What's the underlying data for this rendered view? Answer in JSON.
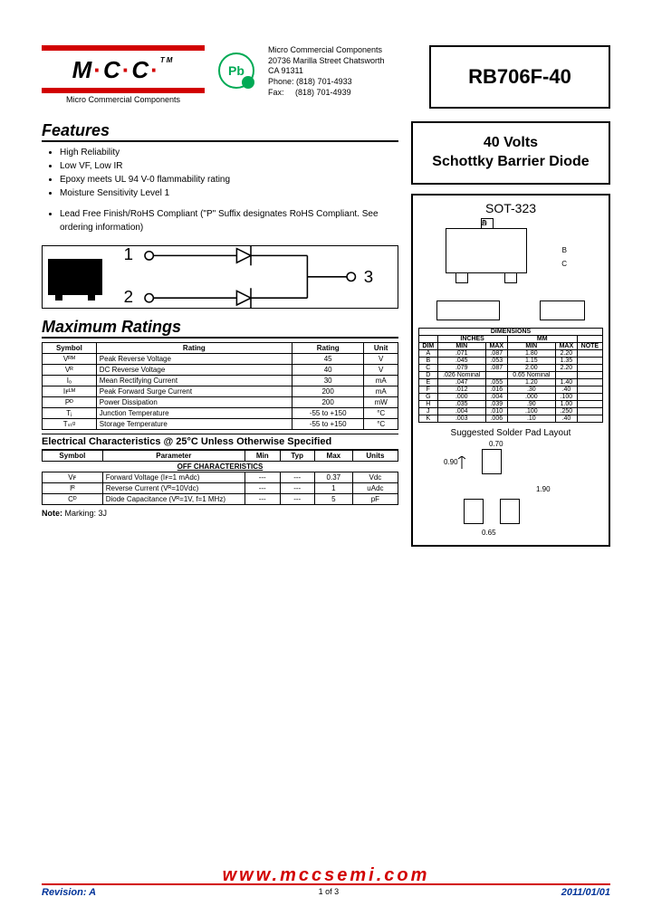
{
  "company": {
    "logo_text": "M·C·C",
    "trademark": "TM",
    "subtitle": "Micro Commercial Components",
    "badge": "Pb",
    "address_lines": [
      "Micro Commercial Components",
      "20736 Marilla Street Chatsworth",
      "CA 91311"
    ],
    "phone_label": "Phone:",
    "phone": "(818) 701-4933",
    "fax_label": "Fax:",
    "fax": "(818) 701-4939"
  },
  "part_number": "RB706F-40",
  "product_title_line1": "40 Volts",
  "product_title_line2": "Schottky Barrier Diode",
  "features": {
    "heading": "Features",
    "items": [
      "High Reliability",
      "Low VF, Low IR",
      "Epoxy meets UL 94 V-0 flammability rating",
      "Moisture Sensitivity Level 1",
      "Lead Free Finish/RoHS Compliant (\"P\" Suffix designates RoHS Compliant. See ordering information)"
    ]
  },
  "pins": {
    "p1": "1",
    "p2": "2",
    "p3": "3"
  },
  "max_ratings": {
    "heading": "Maximum Ratings",
    "columns": [
      "Symbol",
      "Rating",
      "Rating",
      "Unit"
    ],
    "rows": [
      [
        "Vᴿᴹ",
        "Peak Reverse Voltage",
        "45",
        "V"
      ],
      [
        "Vᴿ",
        "DC Reverse Voltage",
        "40",
        "V"
      ],
      [
        "Iₒ",
        "Mean Rectifying Current",
        "30",
        "mA"
      ],
      [
        "Iꜰᴸᴹ",
        "Peak Forward Surge Current",
        "200",
        "mA"
      ],
      [
        "Pᴰ",
        "Power Dissipation",
        "200",
        "mW"
      ],
      [
        "Tⱼ",
        "Junction Temperature",
        "-55 to +150",
        "°C"
      ],
      [
        "Tₛₜᵍ",
        "Storage Temperature",
        "-55 to +150",
        "°C"
      ]
    ]
  },
  "elec_char": {
    "heading": "Electrical Characteristics @ 25°C Unless Otherwise Specified",
    "section": "OFF CHARACTERISTICS",
    "columns": [
      "Symbol",
      "Parameter",
      "Min",
      "Typ",
      "Max",
      "Units"
    ],
    "rows": [
      [
        "Vꜰ",
        "Forward Voltage\n(Iꜰ=1 mAdc)",
        "---",
        "---",
        "0.37",
        "Vdc"
      ],
      [
        "Iᴿ",
        "Reverse Current\n(Vᴿ=10Vdc)",
        "---",
        "---",
        "1",
        "uAdc"
      ],
      [
        "Cᴰ",
        "Diode Capacitance\n(Vᴿ=1V, f=1 MHz)",
        "---",
        "---",
        "5",
        "pF"
      ]
    ],
    "note_label": "Note:",
    "note": "Marking: 3J"
  },
  "package": {
    "name": "SOT-323",
    "dim_heading": "DIMENSIONS",
    "dim_groups": [
      "INCHES",
      "MM"
    ],
    "dim_cols": [
      "DIM",
      "MIN",
      "MAX",
      "MIN",
      "MAX",
      "NOTE"
    ],
    "dim_rows": [
      [
        "A",
        ".071",
        ".087",
        "1.80",
        "2.20",
        ""
      ],
      [
        "B",
        ".045",
        ".053",
        "1.15",
        "1.35",
        ""
      ],
      [
        "C",
        ".079",
        ".087",
        "2.00",
        "2.20",
        ""
      ],
      [
        "D",
        ".026 Nominal",
        "",
        "0.65 Nominal",
        "",
        ""
      ],
      [
        "E",
        ".047",
        ".055",
        "1.20",
        "1.40",
        ""
      ],
      [
        "F",
        ".012",
        ".016",
        ".30",
        ".40",
        ""
      ],
      [
        "G",
        ".000",
        ".004",
        ".000",
        ".100",
        ""
      ],
      [
        "H",
        ".035",
        ".039",
        ".90",
        "1.00",
        ""
      ],
      [
        "J",
        ".004",
        ".010",
        ".100",
        ".250",
        ""
      ],
      [
        "K",
        ".003",
        ".006",
        ".10",
        ".40",
        ""
      ]
    ],
    "solder_title": "Suggested Solder Pad Layout",
    "solder_dims": {
      "w1": "0.70",
      "h1": "0.90",
      "w2": "1.90",
      "gap": "0.65"
    }
  },
  "footer": {
    "url": "www.mccsemi.com",
    "revision_label": "Revision:",
    "revision": "A",
    "page": "1 of 3",
    "date": "2011/01/01"
  },
  "colors": {
    "red": "#d20000",
    "blue": "#003399",
    "green": "#00aa55"
  }
}
